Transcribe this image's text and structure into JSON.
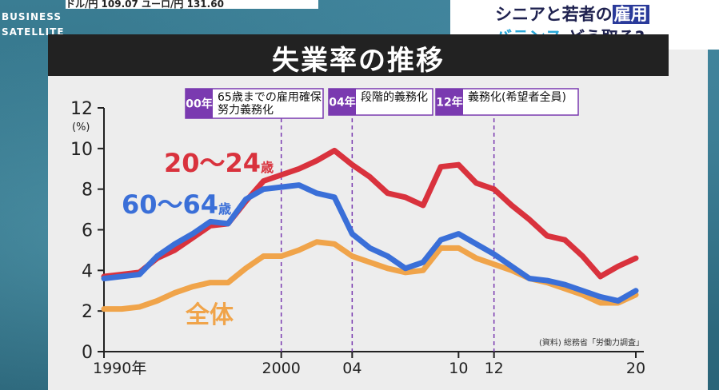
{
  "ticker": {
    "text": "ドル/円 109.07 ユーロ/円 131.60"
  },
  "logo": {
    "line1": "BUSINESS",
    "line2": "SATELLITE"
  },
  "headline": {
    "line1_pre": "シニアと若者の",
    "line1_highlight": "雇用",
    "line2_accent": "バランス",
    "line2_rest": "どう取る?"
  },
  "colors": {
    "series_20_24": "#d9323d",
    "series_60_64": "#3a6fd8",
    "series_all": "#f0a44a",
    "badge": "#7a3ab0",
    "axis": "#222222"
  },
  "chart_data": {
    "type": "line",
    "title": "失業率の推移",
    "ylabel_unit": "(%)",
    "ylim": [
      0,
      12
    ],
    "yticks": [
      0,
      2,
      4,
      6,
      8,
      10,
      12
    ],
    "xlim": [
      1990,
      2020
    ],
    "xtick_labels": [
      {
        "x": 1990,
        "label": "1990年"
      },
      {
        "x": 2000,
        "label": "2000"
      },
      {
        "x": 2004,
        "label": "04"
      },
      {
        "x": 2010,
        "label": "10"
      },
      {
        "x": 2012,
        "label": "12"
      },
      {
        "x": 2020,
        "label": "20"
      }
    ],
    "x": [
      1990,
      1991,
      1992,
      1993,
      1994,
      1995,
      1996,
      1997,
      1998,
      1999,
      2000,
      2001,
      2002,
      2003,
      2004,
      2005,
      2006,
      2007,
      2008,
      2009,
      2010,
      2011,
      2012,
      2013,
      2014,
      2015,
      2016,
      2017,
      2018,
      2019,
      2020
    ],
    "series": [
      {
        "name": "20〜24歳",
        "label_suffix": "歳",
        "label_main": "20〜24",
        "color_key": "series_20_24",
        "values": [
          3.7,
          3.8,
          3.9,
          4.6,
          5.0,
          5.6,
          6.2,
          6.3,
          7.4,
          8.4,
          8.7,
          9.0,
          9.4,
          9.9,
          9.2,
          8.6,
          7.8,
          7.6,
          7.2,
          9.1,
          9.2,
          8.3,
          8.0,
          7.2,
          6.5,
          5.7,
          5.5,
          4.7,
          3.7,
          4.2,
          4.6
        ]
      },
      {
        "name": "60〜64歳",
        "label_suffix": "歳",
        "label_main": "60〜64",
        "color_key": "series_60_64",
        "values": [
          3.6,
          3.7,
          3.8,
          4.7,
          5.3,
          5.8,
          6.4,
          6.3,
          7.5,
          8.0,
          8.1,
          8.2,
          7.8,
          7.6,
          5.8,
          5.1,
          4.7,
          4.1,
          4.4,
          5.5,
          5.8,
          5.3,
          4.8,
          4.2,
          3.6,
          3.5,
          3.3,
          3.0,
          2.7,
          2.5,
          3.0
        ]
      },
      {
        "name": "全体",
        "label_suffix": "",
        "label_main": "全体",
        "color_key": "series_all",
        "values": [
          2.1,
          2.1,
          2.2,
          2.5,
          2.9,
          3.2,
          3.4,
          3.4,
          4.1,
          4.7,
          4.7,
          5.0,
          5.4,
          5.3,
          4.7,
          4.4,
          4.1,
          3.9,
          4.0,
          5.1,
          5.1,
          4.6,
          4.3,
          4.0,
          3.6,
          3.4,
          3.1,
          2.8,
          2.4,
          2.4,
          2.8
        ]
      }
    ],
    "annotations": [
      {
        "x": 2000,
        "badge": "00年",
        "text_lines": [
          "65歳までの雇用確保",
          "努力義務化"
        ]
      },
      {
        "x": 2004,
        "badge": "04年",
        "text_lines": [
          "段階的義務化"
        ]
      },
      {
        "x": 2012,
        "badge": "12年",
        "text_lines": [
          "義務化(希望者全員)"
        ]
      }
    ],
    "source": "(資料) 総務省「労働力調査」",
    "grid": false
  }
}
